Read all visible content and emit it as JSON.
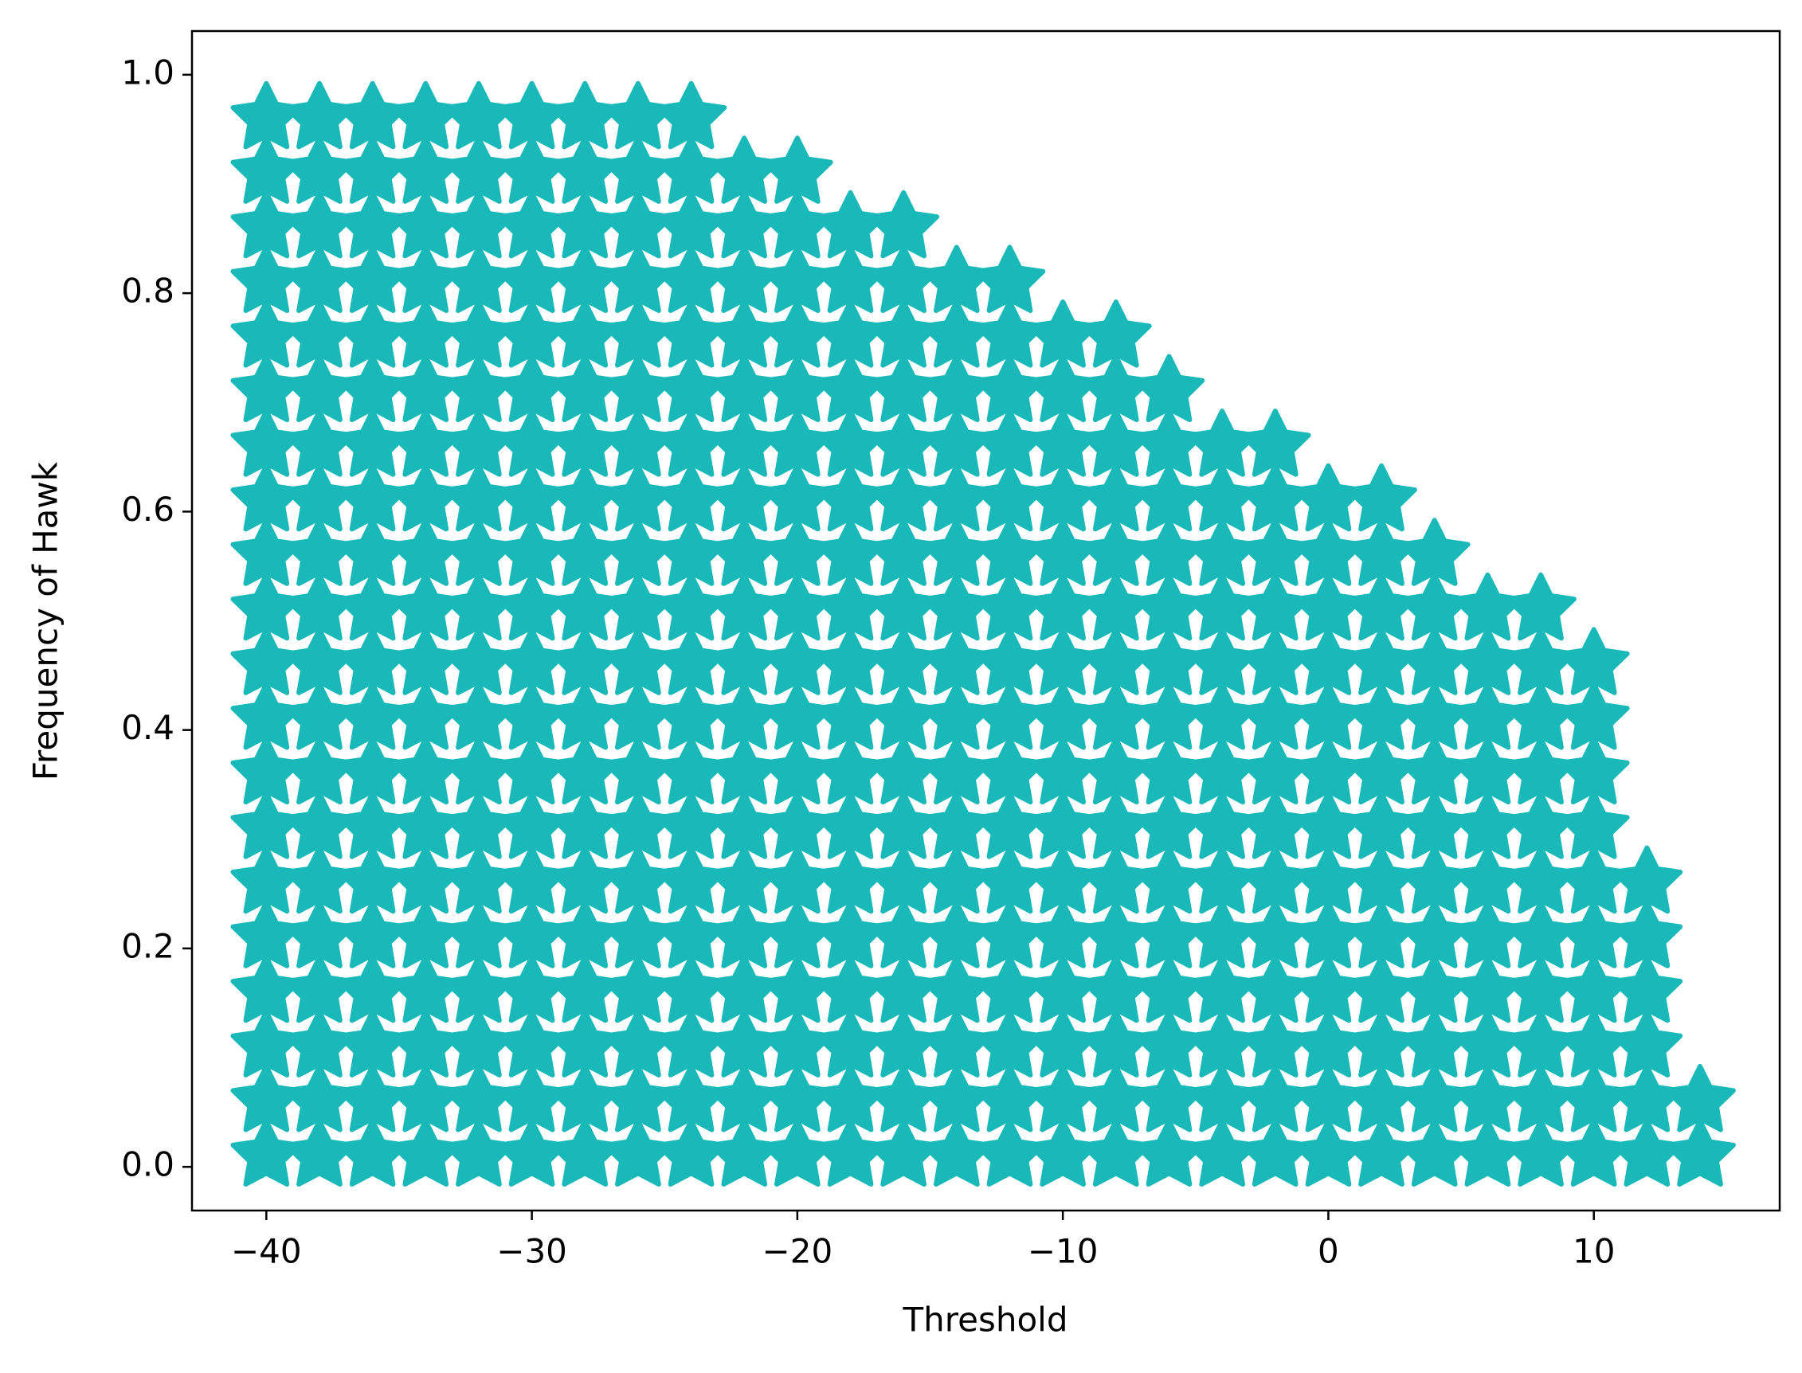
{
  "chart_data": {
    "type": "scatter",
    "xlabel": "Threshold",
    "ylabel": "Frequency of Hawk",
    "color": "#1ab9b9",
    "marker": "star",
    "xlim": [
      -42.8,
      17.0
    ],
    "ylim": [
      -0.04,
      1.04
    ],
    "xticks": [
      {
        "value": -40,
        "label": "−40"
      },
      {
        "value": -30,
        "label": "−30"
      },
      {
        "value": -20,
        "label": "−20"
      },
      {
        "value": -10,
        "label": "−10"
      },
      0,
      10
    ],
    "yticks": [
      {
        "value": 0,
        "label": "0.0"
      },
      0.2,
      0.4,
      0.6,
      0.8,
      {
        "value": 1,
        "label": "1.0"
      }
    ],
    "x": [
      -40,
      -40,
      -40,
      -40,
      -40,
      -40,
      -40,
      -40,
      -40,
      -40,
      -40,
      -40,
      -40,
      -40,
      -40,
      -40,
      -40,
      -40,
      -40,
      -40,
      -38,
      -38,
      -38,
      -38,
      -38,
      -38,
      -38,
      -38,
      -38,
      -38,
      -38,
      -38,
      -38,
      -38,
      -38,
      -38,
      -38,
      -38,
      -38,
      -38,
      -36,
      -36,
      -36,
      -36,
      -36,
      -36,
      -36,
      -36,
      -36,
      -36,
      -36,
      -36,
      -36,
      -36,
      -36,
      -36,
      -36,
      -36,
      -36,
      -36,
      -34,
      -34,
      -34,
      -34,
      -34,
      -34,
      -34,
      -34,
      -34,
      -34,
      -34,
      -34,
      -34,
      -34,
      -34,
      -34,
      -34,
      -34,
      -34,
      -34,
      -32,
      -32,
      -32,
      -32,
      -32,
      -32,
      -32,
      -32,
      -32,
      -32,
      -32,
      -32,
      -32,
      -32,
      -32,
      -32,
      -32,
      -32,
      -32,
      -32,
      -30,
      -30,
      -30,
      -30,
      -30,
      -30,
      -30,
      -30,
      -30,
      -30,
      -30,
      -30,
      -30,
      -30,
      -30,
      -30,
      -30,
      -30,
      -30,
      -30,
      -28,
      -28,
      -28,
      -28,
      -28,
      -28,
      -28,
      -28,
      -28,
      -28,
      -28,
      -28,
      -28,
      -28,
      -28,
      -28,
      -28,
      -28,
      -28,
      -28,
      -26,
      -26,
      -26,
      -26,
      -26,
      -26,
      -26,
      -26,
      -26,
      -26,
      -26,
      -26,
      -26,
      -26,
      -26,
      -26,
      -26,
      -26,
      -26,
      -26,
      -24,
      -24,
      -24,
      -24,
      -24,
      -24,
      -24,
      -24,
      -24,
      -24,
      -24,
      -24,
      -24,
      -24,
      -24,
      -24,
      -24,
      -24,
      -24,
      -24,
      -22,
      -22,
      -22,
      -22,
      -22,
      -22,
      -22,
      -22,
      -22,
      -22,
      -22,
      -22,
      -22,
      -22,
      -22,
      -22,
      -22,
      -22,
      -22,
      -20,
      -20,
      -20,
      -20,
      -20,
      -20,
      -20,
      -20,
      -20,
      -20,
      -20,
      -20,
      -20,
      -20,
      -20,
      -20,
      -20,
      -20,
      -20,
      -18,
      -18,
      -18,
      -18,
      -18,
      -18,
      -18,
      -18,
      -18,
      -18,
      -18,
      -18,
      -18,
      -18,
      -18,
      -18,
      -18,
      -18,
      -16,
      -16,
      -16,
      -16,
      -16,
      -16,
      -16,
      -16,
      -16,
      -16,
      -16,
      -16,
      -16,
      -16,
      -16,
      -16,
      -16,
      -16,
      -14,
      -14,
      -14,
      -14,
      -14,
      -14,
      -14,
      -14,
      -14,
      -14,
      -14,
      -14,
      -14,
      -14,
      -14,
      -14,
      -14,
      -12,
      -12,
      -12,
      -12,
      -12,
      -12,
      -12,
      -12,
      -12,
      -12,
      -12,
      -12,
      -12,
      -12,
      -12,
      -12,
      -12,
      -10,
      -10,
      -10,
      -10,
      -10,
      -10,
      -10,
      -10,
      -10,
      -10,
      -10,
      -10,
      -10,
      -10,
      -10,
      -10,
      -8,
      -8,
      -8,
      -8,
      -8,
      -8,
      -8,
      -8,
      -8,
      -8,
      -8,
      -8,
      -8,
      -8,
      -8,
      -8,
      -6,
      -6,
      -6,
      -6,
      -6,
      -6,
      -6,
      -6,
      -6,
      -6,
      -6,
      -6,
      -6,
      -6,
      -6,
      -4,
      -4,
      -4,
      -4,
      -4,
      -4,
      -4,
      -4,
      -4,
      -4,
      -4,
      -4,
      -4,
      -4,
      -2,
      -2,
      -2,
      -2,
      -2,
      -2,
      -2,
      -2,
      -2,
      -2,
      -2,
      -2,
      -2,
      -2,
      0,
      0,
      0,
      0,
      0,
      0,
      0,
      0,
      0,
      0,
      0,
      0,
      0,
      2,
      2,
      2,
      2,
      2,
      2,
      2,
      2,
      2,
      2,
      2,
      2,
      2,
      4,
      4,
      4,
      4,
      4,
      4,
      4,
      4,
      4,
      4,
      4,
      4,
      6,
      6,
      6,
      6,
      6,
      6,
      6,
      6,
      6,
      6,
      6,
      8,
      8,
      8,
      8,
      8,
      8,
      8,
      8,
      8,
      8,
      8,
      10,
      10,
      10,
      10,
      10,
      10,
      10,
      10,
      10,
      10,
      12,
      12,
      12,
      12,
      12,
      12,
      14,
      14
    ],
    "y": [
      0.01,
      0.06,
      0.11,
      0.16,
      0.21,
      0.26,
      0.31,
      0.36,
      0.41,
      0.46,
      0.51,
      0.56,
      0.61,
      0.66,
      0.71,
      0.76,
      0.81,
      0.86,
      0.91,
      0.96,
      0.01,
      0.06,
      0.11,
      0.16,
      0.21,
      0.26,
      0.31,
      0.36,
      0.41,
      0.46,
      0.51,
      0.56,
      0.61,
      0.66,
      0.71,
      0.76,
      0.81,
      0.86,
      0.91,
      0.96,
      0.01,
      0.06,
      0.11,
      0.16,
      0.21,
      0.26,
      0.31,
      0.36,
      0.41,
      0.46,
      0.51,
      0.56,
      0.61,
      0.66,
      0.71,
      0.76,
      0.81,
      0.86,
      0.91,
      0.96,
      0.01,
      0.06,
      0.11,
      0.16,
      0.21,
      0.26,
      0.31,
      0.36,
      0.41,
      0.46,
      0.51,
      0.56,
      0.61,
      0.66,
      0.71,
      0.76,
      0.81,
      0.86,
      0.91,
      0.96,
      0.01,
      0.06,
      0.11,
      0.16,
      0.21,
      0.26,
      0.31,
      0.36,
      0.41,
      0.46,
      0.51,
      0.56,
      0.61,
      0.66,
      0.71,
      0.76,
      0.81,
      0.86,
      0.91,
      0.96,
      0.01,
      0.06,
      0.11,
      0.16,
      0.21,
      0.26,
      0.31,
      0.36,
      0.41,
      0.46,
      0.51,
      0.56,
      0.61,
      0.66,
      0.71,
      0.76,
      0.81,
      0.86,
      0.91,
      0.96,
      0.01,
      0.06,
      0.11,
      0.16,
      0.21,
      0.26,
      0.31,
      0.36,
      0.41,
      0.46,
      0.51,
      0.56,
      0.61,
      0.66,
      0.71,
      0.76,
      0.81,
      0.86,
      0.91,
      0.96,
      0.01,
      0.06,
      0.11,
      0.16,
      0.21,
      0.26,
      0.31,
      0.36,
      0.41,
      0.46,
      0.51,
      0.56,
      0.61,
      0.66,
      0.71,
      0.76,
      0.81,
      0.86,
      0.91,
      0.96,
      0.01,
      0.06,
      0.11,
      0.16,
      0.21,
      0.26,
      0.31,
      0.36,
      0.41,
      0.46,
      0.51,
      0.56,
      0.61,
      0.66,
      0.71,
      0.76,
      0.81,
      0.86,
      0.91,
      0.96,
      0.01,
      0.06,
      0.11,
      0.16,
      0.21,
      0.26,
      0.31,
      0.36,
      0.41,
      0.46,
      0.51,
      0.56,
      0.61,
      0.66,
      0.71,
      0.76,
      0.81,
      0.86,
      0.91,
      0.01,
      0.06,
      0.11,
      0.16,
      0.21,
      0.26,
      0.31,
      0.36,
      0.41,
      0.46,
      0.51,
      0.56,
      0.61,
      0.66,
      0.71,
      0.76,
      0.81,
      0.86,
      0.91,
      0.01,
      0.06,
      0.11,
      0.16,
      0.21,
      0.26,
      0.31,
      0.36,
      0.41,
      0.46,
      0.51,
      0.56,
      0.61,
      0.66,
      0.71,
      0.76,
      0.81,
      0.86,
      0.01,
      0.06,
      0.11,
      0.16,
      0.21,
      0.26,
      0.31,
      0.36,
      0.41,
      0.46,
      0.51,
      0.56,
      0.61,
      0.66,
      0.71,
      0.76,
      0.81,
      0.86,
      0.01,
      0.06,
      0.11,
      0.16,
      0.21,
      0.26,
      0.31,
      0.36,
      0.41,
      0.46,
      0.51,
      0.56,
      0.61,
      0.66,
      0.71,
      0.76,
      0.81,
      0.01,
      0.06,
      0.11,
      0.16,
      0.21,
      0.26,
      0.31,
      0.36,
      0.41,
      0.46,
      0.51,
      0.56,
      0.61,
      0.66,
      0.71,
      0.76,
      0.81,
      0.01,
      0.06,
      0.11,
      0.16,
      0.21,
      0.26,
      0.31,
      0.36,
      0.41,
      0.46,
      0.51,
      0.56,
      0.61,
      0.66,
      0.71,
      0.76,
      0.01,
      0.06,
      0.11,
      0.16,
      0.21,
      0.26,
      0.31,
      0.36,
      0.41,
      0.46,
      0.51,
      0.56,
      0.61,
      0.66,
      0.71,
      0.76,
      0.01,
      0.06,
      0.11,
      0.16,
      0.21,
      0.26,
      0.31,
      0.36,
      0.41,
      0.46,
      0.51,
      0.56,
      0.61,
      0.66,
      0.71,
      0.01,
      0.06,
      0.11,
      0.16,
      0.21,
      0.26,
      0.31,
      0.36,
      0.41,
      0.46,
      0.51,
      0.56,
      0.61,
      0.66,
      0.01,
      0.06,
      0.11,
      0.16,
      0.21,
      0.26,
      0.31,
      0.36,
      0.41,
      0.46,
      0.51,
      0.56,
      0.61,
      0.66,
      0.01,
      0.06,
      0.11,
      0.16,
      0.21,
      0.26,
      0.31,
      0.36,
      0.41,
      0.46,
      0.51,
      0.56,
      0.61,
      0.01,
      0.06,
      0.11,
      0.16,
      0.21,
      0.26,
      0.31,
      0.36,
      0.41,
      0.46,
      0.51,
      0.56,
      0.61,
      0.01,
      0.06,
      0.11,
      0.16,
      0.21,
      0.26,
      0.31,
      0.36,
      0.41,
      0.46,
      0.51,
      0.56,
      0.01,
      0.06,
      0.11,
      0.16,
      0.21,
      0.26,
      0.31,
      0.36,
      0.41,
      0.46,
      0.51,
      0.01,
      0.06,
      0.11,
      0.16,
      0.21,
      0.26,
      0.31,
      0.36,
      0.41,
      0.46,
      0.51,
      0.01,
      0.06,
      0.11,
      0.16,
      0.21,
      0.26,
      0.31,
      0.36,
      0.41,
      0.46,
      0.01,
      0.06,
      0.11,
      0.16,
      0.21,
      0.26,
      0.01,
      0.06
    ]
  }
}
